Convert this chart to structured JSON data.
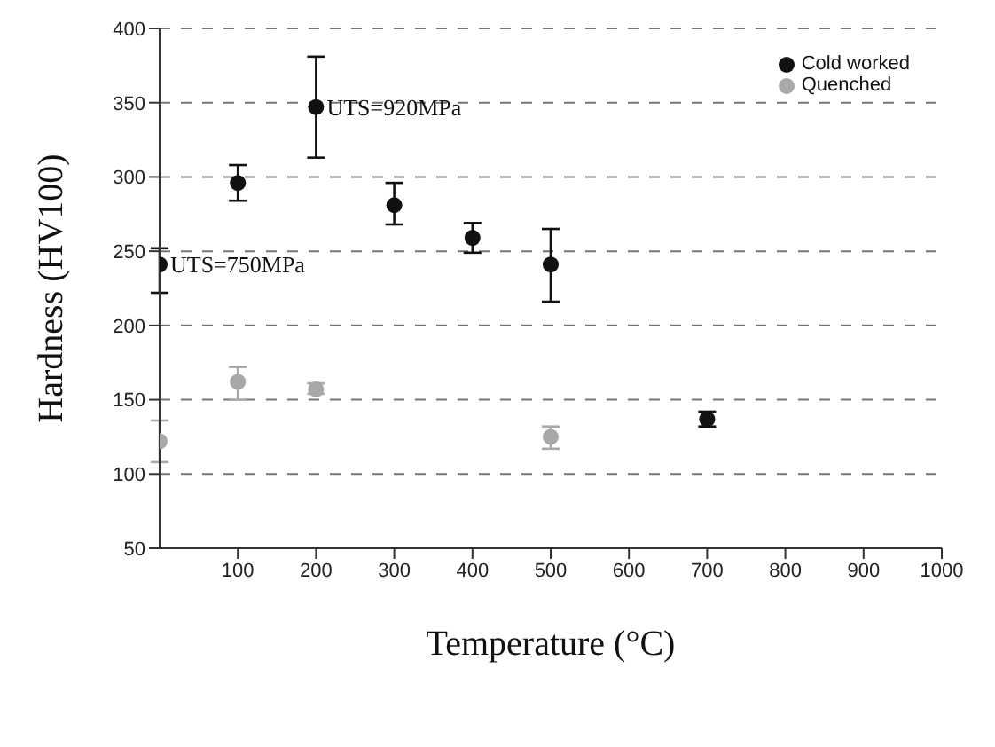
{
  "chart_data": {
    "type": "scatter",
    "xlabel": "Temperature (°C)",
    "ylabel": "Hardness (HV100)",
    "xlim": [
      0,
      1000
    ],
    "xticks": [
      100,
      200,
      300,
      400,
      500,
      600,
      700,
      800,
      900,
      1000
    ],
    "ylim": [
      50,
      400
    ],
    "yticks": [
      50,
      100,
      150,
      200,
      250,
      300,
      350,
      400
    ],
    "grid": "y",
    "legend": "top right",
    "marker": "circle",
    "series": [
      {
        "name": "Cold worked",
        "color": "#111111",
        "x": [
          0,
          100,
          200,
          300,
          400,
          500,
          700
        ],
        "values": [
          241,
          296,
          347,
          281,
          259,
          241,
          137
        ],
        "errors": [
          [
            222,
            252
          ],
          [
            284,
            308
          ],
          [
            313,
            381
          ],
          [
            268,
            296
          ],
          [
            249,
            269
          ],
          [
            216,
            265
          ],
          [
            132,
            142
          ]
        ]
      },
      {
        "name": "Quenched",
        "color": "#a8a8a8",
        "x": [
          0,
          100,
          200,
          500
        ],
        "values": [
          122,
          162,
          157,
          125
        ],
        "errors": [
          [
            108,
            136
          ],
          [
            150,
            172
          ],
          [
            154,
            161
          ],
          [
            117,
            132
          ]
        ]
      }
    ],
    "annotations": [
      {
        "text": "UTS=920MPa",
        "x": 200,
        "y": 347
      },
      {
        "text": "UTS=750MPa",
        "x": 0,
        "y": 241
      }
    ]
  }
}
